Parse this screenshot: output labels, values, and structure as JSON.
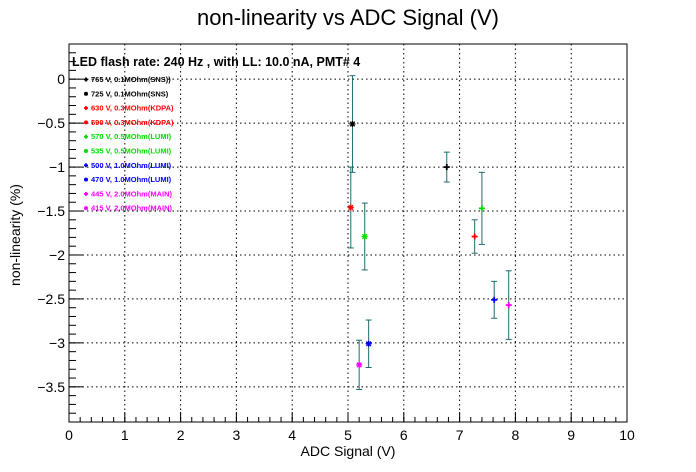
{
  "chart_data": {
    "type": "scatter",
    "title": "non-linearity vs ADC Signal (V)",
    "annotation": "LED flash rate: 240 Hz , with LL: 10.0 nA, PMT# 4",
    "xlabel": "ADC Signal (V)",
    "ylabel": "non-linearity (%)",
    "xlim": [
      0,
      10
    ],
    "ylim": [
      -3.9,
      0.4
    ],
    "x_ticks": [
      0,
      1,
      2,
      3,
      4,
      5,
      6,
      7,
      8,
      9,
      10
    ],
    "x_tick_labels": [
      "0",
      "1",
      "2",
      "3",
      "4",
      "5",
      "6",
      "7",
      "8",
      "9",
      "10"
    ],
    "y_ticks": [
      0,
      -0.5,
      -1,
      -1.5,
      -2,
      -2.5,
      -3,
      -3.5
    ],
    "y_tick_labels": [
      "0",
      "−0.5",
      "−1",
      "−1.5",
      "−2",
      "−2.5",
      "−3",
      "−3.5"
    ],
    "grid": true,
    "legend_position": "top-left",
    "error_bar_color": "#1f6b6b",
    "series": [
      {
        "name": "765 V, 0.1MOhm(SNS))",
        "marker": "+",
        "color": "#000000",
        "points": [
          {
            "x": 6.77,
            "y": -1.0,
            "err": 0.17
          }
        ]
      },
      {
        "name": "725 V, 0.1MOhm(SNS)",
        "marker": "*",
        "color": "#000000",
        "points": [
          {
            "x": 5.08,
            "y": -0.51,
            "err": 0.55
          }
        ]
      },
      {
        "name": "630 V, 0.3MOhm(KDPA)",
        "marker": "+",
        "color": "#ff0000",
        "points": [
          {
            "x": 7.27,
            "y": -1.79,
            "err": 0.19
          }
        ]
      },
      {
        "name": "590 V, 0.3MOhm(KDPA)",
        "marker": "*",
        "color": "#ff0000",
        "points": [
          {
            "x": 5.05,
            "y": -1.46,
            "err": 0.46
          }
        ]
      },
      {
        "name": "570 V, 0.5MOhm(LUMI)",
        "marker": "+",
        "color": "#00dd00",
        "points": [
          {
            "x": 7.4,
            "y": -1.47,
            "err": 0.41
          }
        ]
      },
      {
        "name": "535 V, 0.5MOhm(LUMI)",
        "marker": "*",
        "color": "#00dd00",
        "points": [
          {
            "x": 5.3,
            "y": -1.79,
            "err": 0.38
          }
        ]
      },
      {
        "name": "500 V, 1.0MOhm(LUMI)",
        "marker": "+",
        "color": "#0000ff",
        "points": [
          {
            "x": 7.62,
            "y": -2.51,
            "err": 0.21
          }
        ]
      },
      {
        "name": "470 V, 1.0MOhm(LUMI)",
        "marker": "*",
        "color": "#0000ff",
        "points": [
          {
            "x": 5.37,
            "y": -3.01,
            "err": 0.27
          }
        ]
      },
      {
        "name": "445 V, 2.0MOhm(MAIN)",
        "marker": "+",
        "color": "#ff00ff",
        "points": [
          {
            "x": 7.88,
            "y": -2.57,
            "err": 0.39
          }
        ]
      },
      {
        "name": "415 V, 2.0MOhm(MAIN)",
        "marker": "*",
        "color": "#ff00ff",
        "points": [
          {
            "x": 5.2,
            "y": -3.25,
            "err": 0.28
          }
        ]
      }
    ]
  }
}
